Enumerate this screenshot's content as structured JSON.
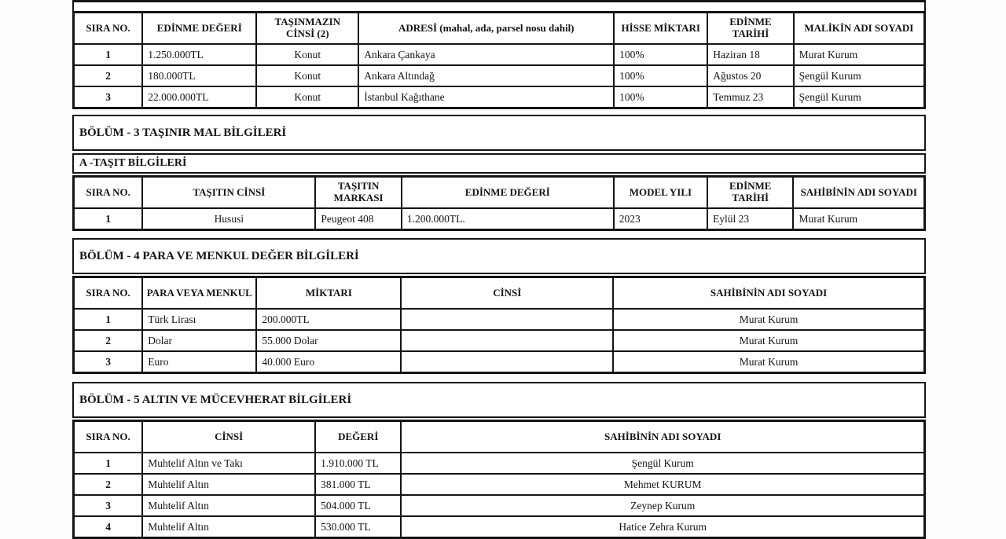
{
  "colors": {
    "border": "#141414",
    "background": "#ffffff",
    "text": "#141414"
  },
  "sections": {
    "bolum3": {
      "title": "BÖLÜM - 3 TAŞINIR MAL BİLGİLERİ"
    },
    "tasit_sub": {
      "title": "A -TAŞIT BİLGİLERİ"
    },
    "bolum4": {
      "title": "BÖLÜM - 4 PARA VE MENKUL DEĞER BİLGİLERİ"
    },
    "bolum5": {
      "title": "BÖLÜM - 5 ALTIN VE MÜCEVHERAT BİLGİLERİ"
    }
  },
  "tables": {
    "immovables": {
      "headers": [
        "SIRA NO.",
        "EDİNME DEĞERİ",
        "TAŞINMAZIN CİNSİ (2)",
        "ADRESİ (mahal, ada, parsel nosu dahil)",
        "HİSSE MİKTARI",
        "EDİNME TARİHİ",
        "MALİKİN ADI SOYADI"
      ],
      "rows": [
        [
          "1",
          "1.250.000TL",
          "Konut",
          "Ankara Çankaya",
          "100%",
          "Haziran 18",
          "Murat Kurum"
        ],
        [
          "2",
          "180.000TL",
          "Konut",
          "Ankara Altındağ",
          "100%",
          "Ağustos 20",
          "Şengül Kurum"
        ],
        [
          "3",
          "22.000.000TL",
          "Konut",
          "İstanbul Kağıthane",
          "100%",
          "Temmuz 23",
          "Şengül Kurum"
        ]
      ]
    },
    "vehicles": {
      "headers": [
        "SIRA NO.",
        "TAŞITIN CİNSİ",
        "TAŞITIN MARKASI",
        "EDİNME DEĞERİ",
        "MODEL YILI",
        "EDİNME TARİHİ",
        "SAHİBİNİN ADI SOYADI"
      ],
      "rows": [
        [
          "1",
          "Hususi",
          "Peugeot 408",
          "1.200.000TL.",
          "2023",
          "Eylül 23",
          "Murat Kurum"
        ]
      ]
    },
    "money": {
      "headers": [
        "SIRA NO.",
        "PARA VEYA MENKUL",
        "MİKTARI",
        "CİNSİ",
        "SAHİBİNİN ADI SOYADI"
      ],
      "rows": [
        [
          "1",
          "Türk Lirası",
          "200.000TL",
          "",
          "Murat Kurum"
        ],
        [
          "2",
          "Dolar",
          "55.000 Dolar",
          "",
          "Murat Kurum"
        ],
        [
          "3",
          "Euro",
          "40.000 Euro",
          "",
          "Murat Kurum"
        ]
      ]
    },
    "gold": {
      "headers": [
        "SIRA NO.",
        "CİNSİ",
        "DEĞERİ",
        "SAHİBİNİN ADI SOYADI"
      ],
      "rows": [
        [
          "1",
          "Muhtelif Altın ve Takı",
          "1.910.000 TL",
          "Şengül Kurum"
        ],
        [
          "2",
          "Muhtelif Altın",
          "381.000 TL",
          "Mehmet KURUM"
        ],
        [
          "3",
          "Muhtelif Altın",
          "504.000 TL",
          "Zeynep Kurum"
        ],
        [
          "4",
          "Muhtelif Altın",
          "530.000 TL",
          "Hatice Zehra Kurum"
        ]
      ]
    }
  }
}
